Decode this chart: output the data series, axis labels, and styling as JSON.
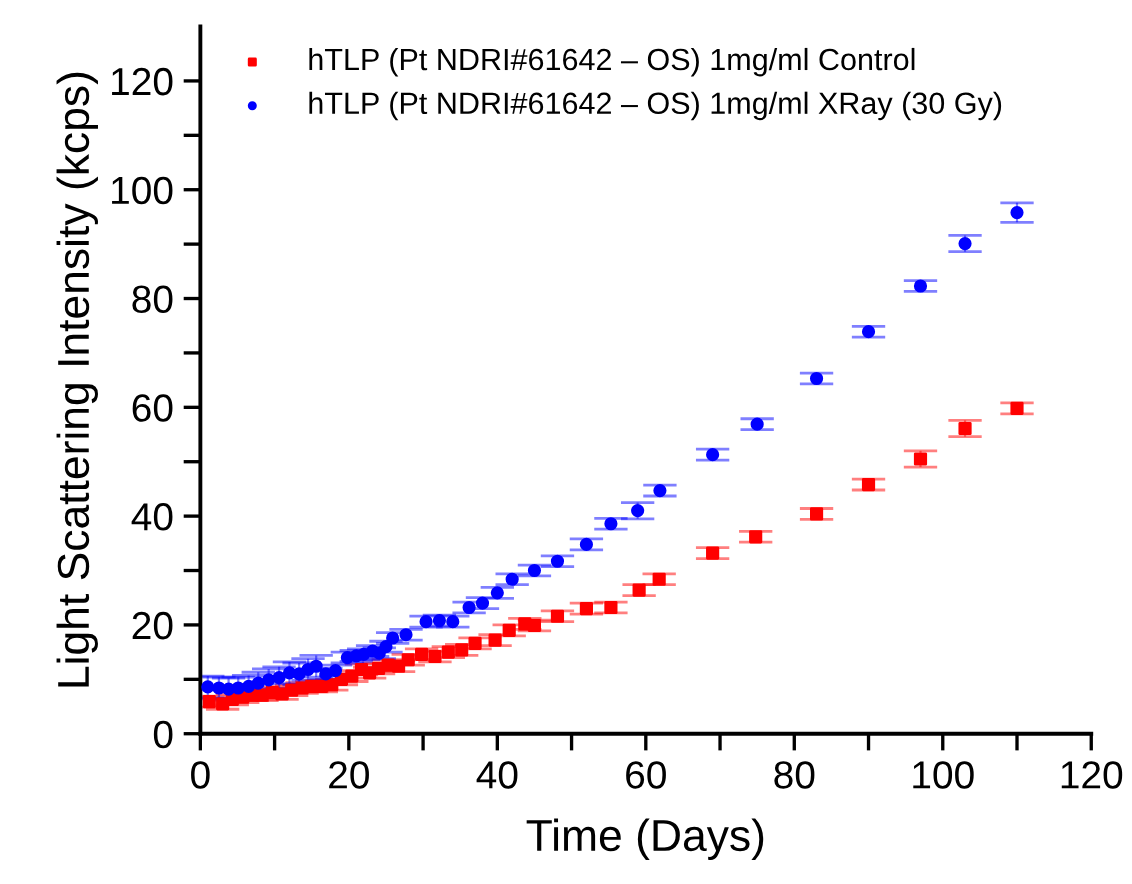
{
  "chart_data": {
    "type": "scatter",
    "xlabel": "Time (Days)",
    "ylabel": "Light Scattering Intensity (kcps)",
    "xlim": [
      0,
      120
    ],
    "ylim": [
      0,
      130
    ],
    "xticks": [
      0,
      {
        "value": 10,
        "label": null
      },
      20,
      {
        "value": 30,
        "label": null
      },
      40,
      {
        "value": 50,
        "label": null
      },
      60,
      {
        "value": 70,
        "label": null
      },
      80,
      {
        "value": 90,
        "label": null
      },
      100,
      {
        "value": 110,
        "label": null
      },
      120
    ],
    "yticks": [
      0,
      {
        "value": 10,
        "label": null
      },
      20,
      {
        "value": 30,
        "label": null
      },
      40,
      {
        "value": 50,
        "label": null
      },
      60,
      {
        "value": 70,
        "label": null
      },
      80,
      {
        "value": 90,
        "label": null
      },
      100,
      {
        "value": 110,
        "label": null
      },
      120
    ],
    "grid": false,
    "legend": "top left",
    "series": [
      {
        "name": "hTLP (Pt NDRI#61642 – OS) 1mg/ml Control",
        "color": "#ff0000",
        "marker": "square",
        "x": [
          1.2,
          3.0,
          4.3,
          5.7,
          7.0,
          8.3,
          9.7,
          11.0,
          12.3,
          13.7,
          15.0,
          16.3,
          17.7,
          19.0,
          20.4,
          21.7,
          22.8,
          24.0,
          25.3,
          26.7,
          28.0,
          29.8,
          31.6,
          33.4,
          35.2,
          37.0,
          39.7,
          41.6,
          43.7,
          45.0,
          48.1,
          52.0,
          55.3,
          59.1,
          61.8,
          69.0,
          74.8,
          83.0,
          90.0,
          97.0,
          103.0,
          110.0
        ],
        "values": [
          5.9,
          5.5,
          6.3,
          6.7,
          7.1,
          7.1,
          7.6,
          7.3,
          8.0,
          8.4,
          8.7,
          8.7,
          9.0,
          10.0,
          10.6,
          11.8,
          11.2,
          12.0,
          12.6,
          12.4,
          13.6,
          14.6,
          14.2,
          15.0,
          15.4,
          16.6,
          17.2,
          19.0,
          20.2,
          19.9,
          21.6,
          23.0,
          23.2,
          26.4,
          28.4,
          33.2,
          36.2,
          40.4,
          45.8,
          50.5,
          56.1,
          59.8
        ],
        "errors": [
          1,
          1,
          1,
          1,
          1,
          1,
          1,
          1,
          1,
          1,
          1,
          1,
          1,
          1,
          1,
          1,
          1,
          1,
          1,
          1,
          1,
          1,
          1,
          1,
          1,
          1,
          1,
          1,
          1,
          1,
          1,
          1,
          1,
          1,
          1,
          1,
          1,
          1,
          1,
          1.5,
          1.5,
          1
        ]
      },
      {
        "name": "hTLP (Pt NDRI#61642 – OS) 1mg/ml XRay (30 Gy)",
        "color": "#0000ff",
        "marker": "circle",
        "x": [
          1.0,
          2.5,
          3.8,
          5.1,
          6.5,
          7.8,
          9.2,
          10.6,
          12.0,
          13.3,
          14.5,
          15.6,
          16.9,
          18.2,
          19.8,
          21.0,
          22.0,
          23.2,
          24.1,
          25.0,
          25.9,
          27.7,
          30.4,
          32.2,
          34.0,
          36.2,
          38.0,
          40.0,
          42.0,
          45.0,
          48.1,
          52.0,
          55.3,
          58.9,
          61.9,
          69.0,
          75.0,
          83.0,
          90.0,
          97.0,
          103.0,
          110.0
        ],
        "values": [
          8.6,
          8.4,
          8.2,
          8.4,
          8.7,
          9.3,
          9.9,
          10.3,
          11.2,
          11.0,
          11.8,
          12.4,
          11.0,
          11.6,
          14.0,
          14.3,
          14.6,
          15.2,
          14.8,
          16.0,
          17.6,
          18.2,
          20.6,
          20.8,
          20.6,
          23.2,
          24.0,
          25.9,
          28.4,
          30.0,
          31.7,
          34.8,
          38.6,
          41.0,
          44.7,
          51.3,
          56.9,
          65.3,
          73.9,
          82.3,
          90.1,
          95.8
        ],
        "errors": [
          2,
          2,
          2,
          2,
          2,
          2,
          2,
          2,
          2,
          2,
          2,
          2,
          1,
          1,
          1,
          1,
          1,
          1,
          1,
          1,
          1,
          1,
          1,
          1,
          1,
          1,
          1,
          1,
          1,
          1,
          1,
          1,
          1,
          1.5,
          1,
          1,
          1,
          1,
          1,
          1,
          1.5,
          1.8
        ]
      }
    ]
  }
}
